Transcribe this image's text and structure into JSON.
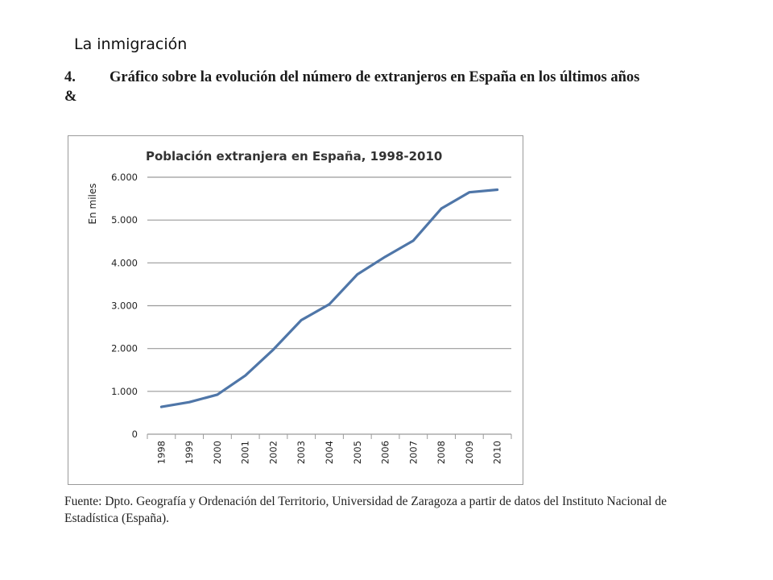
{
  "slide": {
    "title": "La inmigración"
  },
  "heading": {
    "number": "4.",
    "text": "Gráfico sobre la evolución del número de extranjeros en España en los últimos años &"
  },
  "source": {
    "text": "Fuente: Dpto. Geografía y Ordenación del Territorio, Universidad de Zaragoza a partir de datos del Instituto Nacional de Estadística (España)."
  },
  "chart_data": {
    "type": "line",
    "title": "Población extranjera en España, 1998-2010",
    "xlabel": "",
    "ylabel": "En miles",
    "categories": [
      "1998",
      "1999",
      "2000",
      "2001",
      "2002",
      "2003",
      "2004",
      "2005",
      "2006",
      "2007",
      "2008",
      "2009",
      "2010"
    ],
    "series": [
      {
        "values": [
          637,
          749,
          923,
          1370,
          1977,
          2664,
          3034,
          3731,
          4144,
          4519,
          5268,
          5648,
          5708
        ]
      }
    ],
    "ylim": [
      0,
      6000
    ],
    "yticks": [
      0,
      1000,
      2000,
      3000,
      4000,
      5000,
      6000
    ],
    "ytick_labels": [
      "0",
      "1.000",
      "2.000",
      "3.000",
      "4.000",
      "5.000",
      "6.000"
    ],
    "grid": true,
    "legend": "none",
    "line_color": "#4f76a8",
    "grid_color": "#9a9a9a"
  }
}
